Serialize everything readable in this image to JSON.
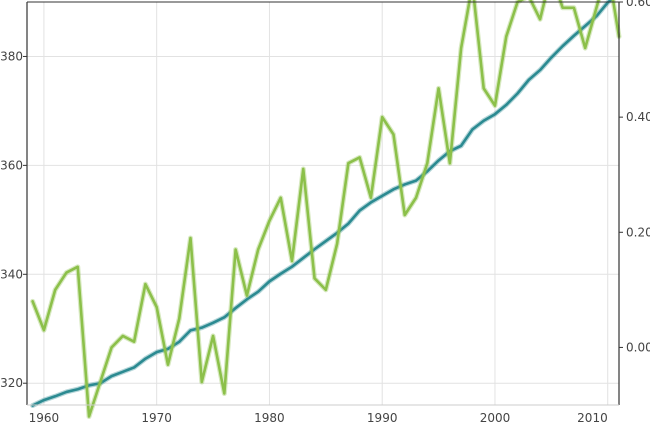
{
  "chart_data": {
    "type": "line",
    "title": "",
    "xlabel": "",
    "ylabel": "",
    "y2label": "",
    "x_range": [
      1958.5,
      2011.0
    ],
    "ylim": [
      316,
      390
    ],
    "y2lim": [
      -0.1,
      0.6
    ],
    "grid": true,
    "x_ticks": [
      1960,
      1970,
      1980,
      1990,
      2000,
      2010
    ],
    "x_tick_labels": [
      "1960",
      "1970",
      "1980",
      "1990",
      "2000",
      "2010"
    ],
    "y_ticks": [
      320,
      340,
      360,
      380
    ],
    "y_tick_labels": [
      "320",
      "340",
      "360",
      "380"
    ],
    "y2_ticks": [
      0.0,
      0.2,
      0.4,
      0.6
    ],
    "y2_tick_labels": [
      "0.00",
      "0.20",
      "0.40",
      "0.60"
    ],
    "series": [
      {
        "axis": "left",
        "color": "#2b8a91",
        "x": [
          1959,
          1960,
          1961,
          1962,
          1963,
          1964,
          1965,
          1966,
          1967,
          1968,
          1969,
          1970,
          1971,
          1972,
          1973,
          1974,
          1975,
          1976,
          1977,
          1978,
          1979,
          1980,
          1981,
          1982,
          1983,
          1984,
          1985,
          1986,
          1987,
          1988,
          1989,
          1990,
          1991,
          1992,
          1993,
          1994,
          1995,
          1996,
          1997,
          1998,
          1999,
          2000,
          2001,
          2002,
          2003,
          2004,
          2005,
          2006,
          2007,
          2008,
          2009,
          2010,
          2011
        ],
        "values": [
          315.9,
          316.9,
          317.6,
          318.4,
          318.9,
          319.6,
          320.0,
          321.3,
          322.1,
          322.9,
          324.5,
          325.7,
          326.3,
          327.6,
          329.7,
          330.2,
          331.1,
          332.1,
          333.8,
          335.4,
          336.8,
          338.7,
          340.1,
          341.4,
          343.0,
          344.6,
          346.1,
          347.6,
          349.3,
          351.7,
          353.2,
          354.4,
          355.6,
          356.5,
          357.2,
          358.9,
          360.9,
          362.6,
          363.6,
          366.6,
          368.2,
          369.4,
          371.1,
          373.2,
          375.7,
          377.5,
          379.8,
          381.9,
          383.8,
          385.6,
          387.4,
          389.9,
          391.6
        ]
      },
      {
        "axis": "right",
        "color": "#8cc04a",
        "x": [
          1959,
          1960,
          1961,
          1962,
          1963,
          1964,
          1965,
          1966,
          1967,
          1968,
          1969,
          1970,
          1971,
          1972,
          1973,
          1974,
          1975,
          1976,
          1977,
          1978,
          1979,
          1980,
          1981,
          1982,
          1983,
          1984,
          1985,
          1986,
          1987,
          1988,
          1989,
          1990,
          1991,
          1992,
          1993,
          1994,
          1995,
          1996,
          1997,
          1998,
          1999,
          2000,
          2001,
          2002,
          2003,
          2004,
          2005,
          2006,
          2007,
          2008,
          2009,
          2010,
          2011
        ],
        "values": [
          0.08,
          0.03,
          0.1,
          0.13,
          0.14,
          -0.12,
          -0.06,
          0.0,
          0.02,
          0.01,
          0.11,
          0.07,
          -0.03,
          0.05,
          0.19,
          -0.06,
          0.02,
          -0.08,
          0.17,
          0.09,
          0.17,
          0.22,
          0.26,
          0.15,
          0.31,
          0.12,
          0.1,
          0.18,
          0.32,
          0.33,
          0.26,
          0.4,
          0.37,
          0.23,
          0.26,
          0.32,
          0.45,
          0.32,
          0.52,
          0.63,
          0.45,
          0.42,
          0.54,
          0.6,
          0.61,
          0.57,
          0.65,
          0.59,
          0.59,
          0.52,
          0.59,
          0.66,
          0.54
        ]
      }
    ]
  }
}
